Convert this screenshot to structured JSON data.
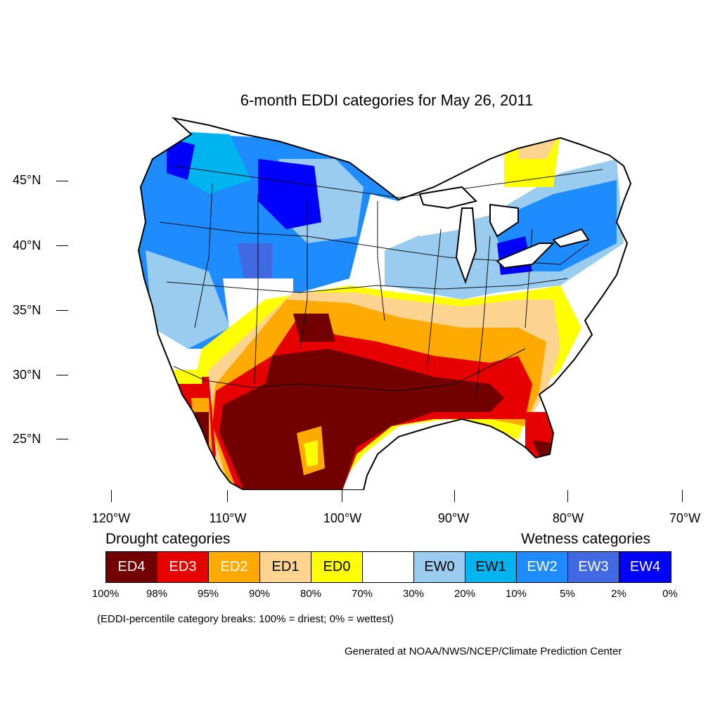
{
  "title": "6-month EDDI categories for May 26, 2011",
  "latitude_labels": [
    "45°N",
    "40°N",
    "35°N",
    "30°N",
    "25°N"
  ],
  "longitude_labels": [
    "120°W",
    "110°W",
    "100°W",
    "90°W",
    "80°W",
    "70°W"
  ],
  "legend": {
    "drought_heading": "Drought categories",
    "wetness_heading": "Wetness categories",
    "categories": [
      {
        "label": "ED4",
        "color": "#730000",
        "text_color": "#ffffff"
      },
      {
        "label": "ED3",
        "color": "#e60000",
        "text_color": "#ffffff"
      },
      {
        "label": "ED2",
        "color": "#ffaa00",
        "text_color": "#ffffff"
      },
      {
        "label": "ED1",
        "color": "#fcd38f",
        "text_color": "#000000"
      },
      {
        "label": "ED0",
        "color": "#ffff00",
        "text_color": "#000000"
      },
      {
        "label": "",
        "color": "#ffffff",
        "text_color": "#000000"
      },
      {
        "label": "EW0",
        "color": "#99ccee",
        "text_color": "#000000"
      },
      {
        "label": "EW1",
        "color": "#00b4f0",
        "text_color": "#000000"
      },
      {
        "label": "EW2",
        "color": "#1e8cff",
        "text_color": "#ffffff"
      },
      {
        "label": "EW3",
        "color": "#4169e1",
        "text_color": "#ffffff"
      },
      {
        "label": "EW4",
        "color": "#0000ff",
        "text_color": "#ffffff"
      }
    ],
    "breaks": [
      "100%",
      "98%",
      "95%",
      "90%",
      "80%",
      "70%",
      "30%",
      "20%",
      "10%",
      "5%",
      "2%",
      "0%"
    ]
  },
  "note": "(EDDI-percentile category breaks: 100% = driest; 0% = wettest)",
  "credit": "Generated at NOAA/NWS/NCEP/Climate Prediction Center"
}
